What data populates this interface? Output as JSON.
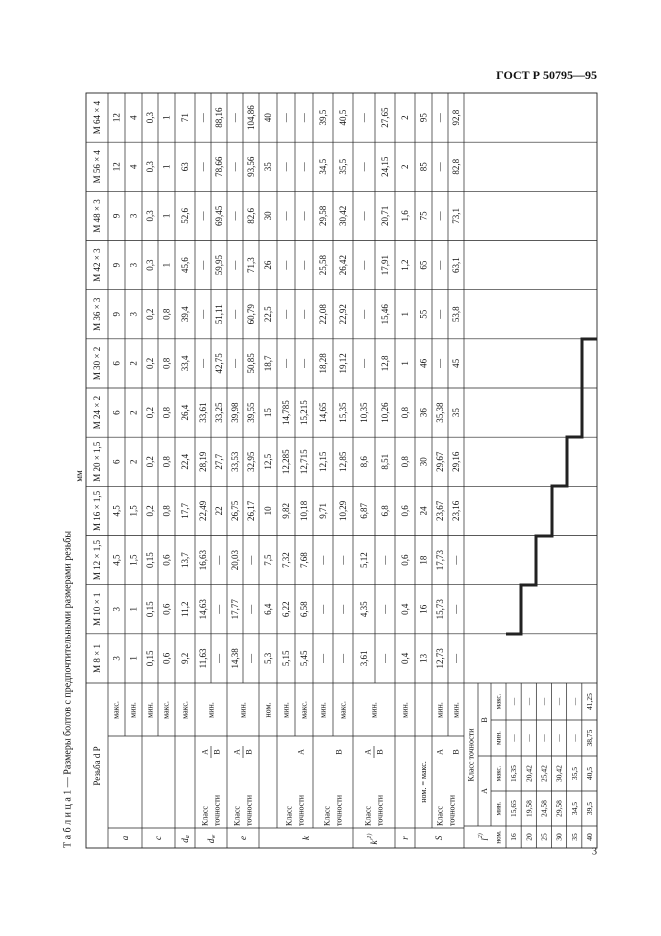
{
  "header": {
    "code": "ГОСТ Р 50795—95"
  },
  "table": {
    "caption": "Т а б л и ц а 1 — Размеры болтов с предпочтительными размерами резьбы",
    "unit": "мм",
    "corner": "Резьба d P",
    "threads": [
      "М 8 × 1",
      "М 10 × 1",
      "М 12 × 1,5",
      "М 16 × 1,5",
      "М 20 × 1,5",
      "М 24 × 2",
      "М 30 × 2",
      "М 36 × 3",
      "М 42 × 3",
      "М 48 × 3",
      "М 56 × 4",
      "М 64 × 4"
    ],
    "row_header": {
      "symbols": [
        "a",
        "c",
        {
          "main": "d",
          "sub": "a"
        },
        {
          "main": "d",
          "sub": "w"
        },
        "e",
        "k",
        {
          "main": "k'",
          "sup": "1)"
        },
        "r",
        "S"
      ],
      "class": "Класс",
      "accuracy": "точности",
      "A": "A",
      "B": "B",
      "qualifiers": [
        "макс.",
        "мин.",
        "мин.",
        "макс.",
        "макс.",
        "мин.",
        "мин.",
        "ном.",
        "мин.",
        "макс.",
        "мин.",
        "макс.",
        "мин.",
        "мин.",
        "ном. = макс.",
        "мин.",
        "мин."
      ]
    },
    "columns": [
      [
        "3",
        "1",
        "0,15",
        "0,6",
        "9,2",
        "11,63",
        "—",
        "14,38",
        "—",
        "5,3",
        "5,15",
        "5,45",
        "—",
        "—",
        "3,61",
        "—",
        "0,4",
        "13",
        "12,73",
        "—"
      ],
      [
        "3",
        "1",
        "0,15",
        "0,6",
        "11,2",
        "14,63",
        "—",
        "17,77",
        "—",
        "6,4",
        "6,22",
        "6,58",
        "—",
        "—",
        "4,35",
        "—",
        "0,4",
        "16",
        "15,73",
        "—"
      ],
      [
        "4,5",
        "1,5",
        "0,15",
        "0,6",
        "13,7",
        "16,63",
        "—",
        "20,03",
        "—",
        "7,5",
        "7,32",
        "7,68",
        "—",
        "—",
        "5,12",
        "—",
        "0,6",
        "18",
        "17,73",
        "—"
      ],
      [
        "4,5",
        "1,5",
        "0,2",
        "0,8",
        "17,7",
        "22,49",
        "22",
        "26,75",
        "26,17",
        "10",
        "9,82",
        "10,18",
        "9,71",
        "10,29",
        "6,87",
        "6,8",
        "0,6",
        "24",
        "23,67",
        "23,16"
      ],
      [
        "6",
        "2",
        "0,2",
        "0,8",
        "22,4",
        "28,19",
        "27,7",
        "33,53",
        "32,95",
        "12,5",
        "12,285",
        "12,715",
        "12,15",
        "12,85",
        "8,6",
        "8,51",
        "0,8",
        "30",
        "29,67",
        "29,16"
      ],
      [
        "6",
        "2",
        "0,2",
        "0,8",
        "26,4",
        "33,61",
        "33,25",
        "39,98",
        "39,55",
        "15",
        "14,785",
        "15,215",
        "14,65",
        "15,35",
        "10,35",
        "10,26",
        "0,8",
        "36",
        "35,38",
        "35"
      ],
      [
        "6",
        "2",
        "0,2",
        "0,8",
        "33,4",
        "—",
        "42,75",
        "—",
        "50,85",
        "18,7",
        "—",
        "—",
        "18,28",
        "19,12",
        "—",
        "12,8",
        "1",
        "46",
        "—",
        "45"
      ],
      [
        "9",
        "3",
        "0,2",
        "0,8",
        "39,4",
        "—",
        "51,11",
        "—",
        "60,79",
        "22,5",
        "—",
        "—",
        "22,08",
        "22,92",
        "—",
        "15,46",
        "1",
        "55",
        "—",
        "53,8"
      ],
      [
        "9",
        "3",
        "0,3",
        "1",
        "45,6",
        "—",
        "59,95",
        "—",
        "71,3",
        "26",
        "—",
        "—",
        "25,58",
        "26,42",
        "—",
        "17,91",
        "1,2",
        "65",
        "—",
        "63,1"
      ],
      [
        "9",
        "3",
        "0,3",
        "1",
        "52,6",
        "—",
        "69,45",
        "—",
        "82,6",
        "30",
        "—",
        "—",
        "29,58",
        "30,42",
        "—",
        "20,71",
        "1,6",
        "75",
        "—",
        "73,1"
      ],
      [
        "12",
        "4",
        "0,3",
        "1",
        "63",
        "—",
        "78,66",
        "—",
        "93,56",
        "35",
        "—",
        "—",
        "34,5",
        "35,5",
        "—",
        "24,15",
        "2",
        "85",
        "—",
        "82,8"
      ],
      [
        "12",
        "4",
        "0,3",
        "1",
        "71",
        "—",
        "88,16",
        "—",
        "104,86",
        "40",
        "—",
        "—",
        "39,5",
        "40,5",
        "—",
        "27,65",
        "2",
        "95",
        "—",
        "92,8"
      ]
    ],
    "l_table": {
      "symbol": "l",
      "sup": "2)",
      "class": "Класс точности",
      "A": "A",
      "B": "B",
      "heads": [
        "ном.",
        "мин.",
        "макс.",
        "мин.",
        "макс."
      ],
      "rows": [
        [
          "16",
          "15,65",
          "16,35",
          "—",
          "—"
        ],
        [
          "20",
          "19,58",
          "20,42",
          "—",
          "—"
        ],
        [
          "25",
          "24,58",
          "25,42",
          "—",
          "—"
        ],
        [
          "30",
          "29,58",
          "30,42",
          "—",
          "—"
        ],
        [
          "35",
          "34,5",
          "35,5",
          "—",
          "—"
        ],
        [
          "40",
          "39,5",
          "40,5",
          "38,75",
          "41,25"
        ]
      ]
    }
  },
  "footer": {
    "page": "3"
  }
}
